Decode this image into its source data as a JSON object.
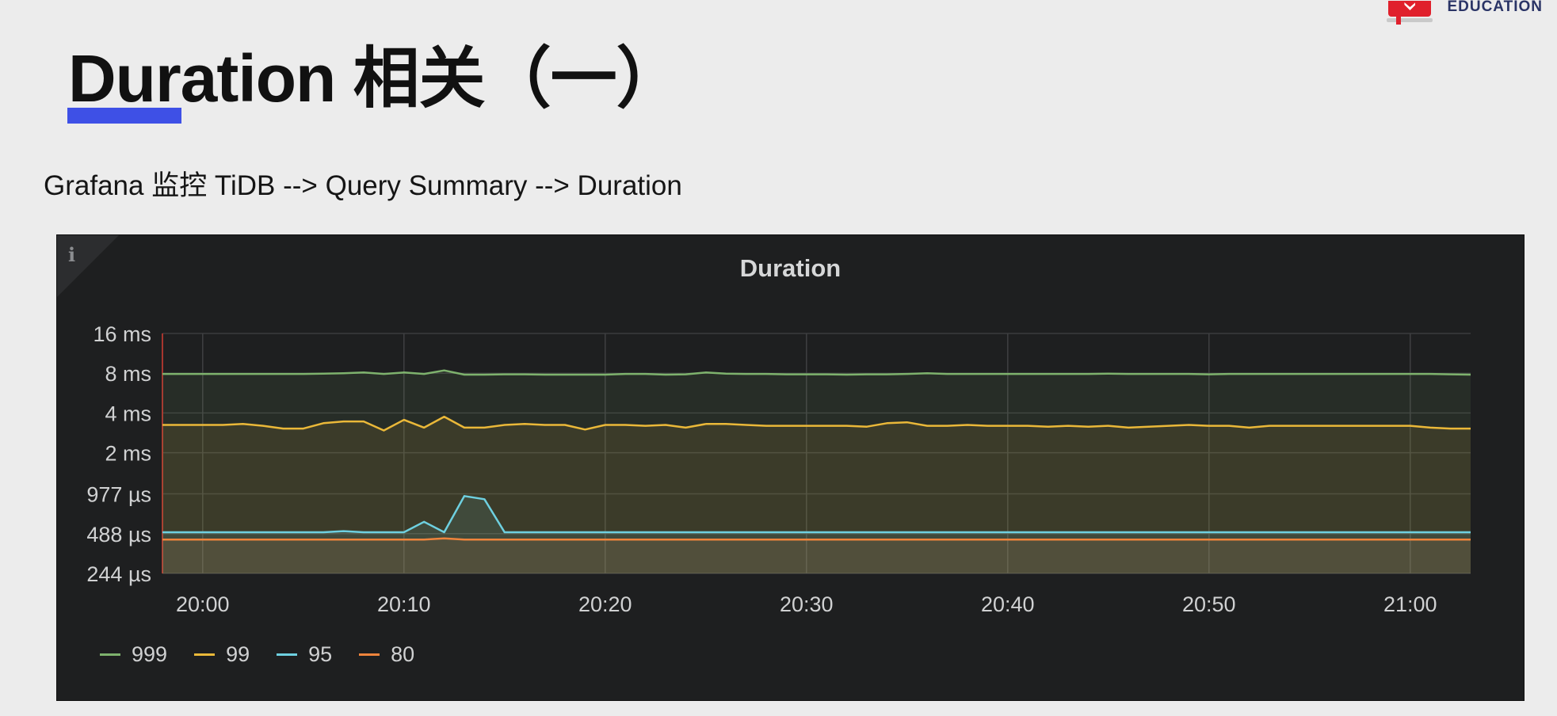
{
  "brand": {
    "logo_text": "EDUCATION"
  },
  "slide": {
    "title": "Duration 相关（一）",
    "subtitle": "Grafana 监控 TiDB --> Query Summary --> Duration"
  },
  "panel": {
    "info_icon": "info-icon",
    "info_glyph": "i"
  },
  "colors": {
    "accent_bar": "#3e50e6",
    "panel_bg": "#1e1f20"
  },
  "chart_data": {
    "type": "line",
    "title": "Duration",
    "y_scale": "log2",
    "ylim_ms": [
      0.244,
      16
    ],
    "y_ticks": [
      {
        "value_ms": 16,
        "label": "16 ms"
      },
      {
        "value_ms": 8,
        "label": "8 ms"
      },
      {
        "value_ms": 4,
        "label": "4 ms"
      },
      {
        "value_ms": 2,
        "label": "2 ms"
      },
      {
        "value_ms": 0.977,
        "label": "977 µs"
      },
      {
        "value_ms": 0.488,
        "label": "488 µs"
      },
      {
        "value_ms": 0.244,
        "label": "244 µs"
      }
    ],
    "x_ticks": [
      "20:00",
      "20:10",
      "20:20",
      "20:30",
      "20:40",
      "20:50",
      "21:00"
    ],
    "xlim": [
      "19:58",
      "21:03"
    ],
    "grid": true,
    "legend_position": "bottom-left",
    "x": [
      "19:58",
      "19:59",
      "20:00",
      "20:01",
      "20:02",
      "20:03",
      "20:04",
      "20:05",
      "20:06",
      "20:07",
      "20:08",
      "20:09",
      "20:10",
      "20:11",
      "20:12",
      "20:13",
      "20:14",
      "20:15",
      "20:16",
      "20:17",
      "20:18",
      "20:19",
      "20:20",
      "20:21",
      "20:22",
      "20:23",
      "20:24",
      "20:25",
      "20:26",
      "20:27",
      "20:28",
      "20:29",
      "20:30",
      "20:31",
      "20:32",
      "20:33",
      "20:34",
      "20:35",
      "20:36",
      "20:37",
      "20:38",
      "20:39",
      "20:40",
      "20:41",
      "20:42",
      "20:43",
      "20:44",
      "20:45",
      "20:46",
      "20:47",
      "20:48",
      "20:49",
      "20:50",
      "20:51",
      "20:52",
      "20:53",
      "20:54",
      "20:55",
      "20:56",
      "20:57",
      "20:58",
      "20:59",
      "21:00",
      "21:01",
      "21:02",
      "21:03"
    ],
    "series": [
      {
        "name": "999",
        "color": "#7eb26d",
        "fill": "#7eb26d",
        "values": [
          7.9,
          7.9,
          7.9,
          7.9,
          7.9,
          7.9,
          7.9,
          7.9,
          7.95,
          8.0,
          8.1,
          7.9,
          8.1,
          7.9,
          8.4,
          7.8,
          7.8,
          7.85,
          7.85,
          7.8,
          7.8,
          7.8,
          7.8,
          7.9,
          7.9,
          7.8,
          7.85,
          8.1,
          7.95,
          7.9,
          7.9,
          7.85,
          7.85,
          7.85,
          7.8,
          7.85,
          7.85,
          7.9,
          8.0,
          7.9,
          7.9,
          7.9,
          7.9,
          7.9,
          7.9,
          7.9,
          7.9,
          7.95,
          7.9,
          7.9,
          7.9,
          7.9,
          7.85,
          7.9,
          7.9,
          7.9,
          7.9,
          7.9,
          7.9,
          7.9,
          7.9,
          7.9,
          7.9,
          7.9,
          7.85,
          7.8
        ]
      },
      {
        "name": "99",
        "color": "#eab839",
        "fill": "#eab839",
        "values": [
          3.25,
          3.25,
          3.25,
          3.25,
          3.3,
          3.2,
          3.05,
          3.05,
          3.35,
          3.45,
          3.45,
          2.95,
          3.55,
          3.1,
          3.75,
          3.1,
          3.1,
          3.25,
          3.3,
          3.25,
          3.25,
          3.0,
          3.25,
          3.25,
          3.2,
          3.25,
          3.1,
          3.3,
          3.3,
          3.25,
          3.2,
          3.2,
          3.2,
          3.2,
          3.2,
          3.15,
          3.35,
          3.4,
          3.2,
          3.2,
          3.25,
          3.2,
          3.2,
          3.2,
          3.15,
          3.2,
          3.15,
          3.2,
          3.1,
          3.15,
          3.2,
          3.25,
          3.2,
          3.2,
          3.1,
          3.2,
          3.2,
          3.2,
          3.2,
          3.2,
          3.2,
          3.2,
          3.2,
          3.1,
          3.05,
          3.05
        ]
      },
      {
        "name": "95",
        "color": "#6ed0e0",
        "fill": "#6ed0e0",
        "values": [
          0.5,
          0.5,
          0.5,
          0.5,
          0.5,
          0.5,
          0.5,
          0.5,
          0.5,
          0.51,
          0.5,
          0.5,
          0.5,
          0.6,
          0.5,
          0.94,
          0.89,
          0.5,
          0.5,
          0.5,
          0.5,
          0.5,
          0.5,
          0.5,
          0.5,
          0.5,
          0.5,
          0.5,
          0.5,
          0.5,
          0.5,
          0.5,
          0.5,
          0.5,
          0.5,
          0.5,
          0.5,
          0.5,
          0.5,
          0.5,
          0.5,
          0.5,
          0.5,
          0.5,
          0.5,
          0.5,
          0.5,
          0.5,
          0.5,
          0.5,
          0.5,
          0.5,
          0.5,
          0.5,
          0.5,
          0.5,
          0.5,
          0.5,
          0.5,
          0.5,
          0.5,
          0.5,
          0.5,
          0.5,
          0.5,
          0.5
        ]
      },
      {
        "name": "80",
        "color": "#ef843c",
        "fill": "#ef843c",
        "values": [
          0.44,
          0.44,
          0.44,
          0.44,
          0.44,
          0.44,
          0.44,
          0.44,
          0.44,
          0.44,
          0.44,
          0.44,
          0.44,
          0.44,
          0.45,
          0.44,
          0.44,
          0.44,
          0.44,
          0.44,
          0.44,
          0.44,
          0.44,
          0.44,
          0.44,
          0.44,
          0.44,
          0.44,
          0.44,
          0.44,
          0.44,
          0.44,
          0.44,
          0.44,
          0.44,
          0.44,
          0.44,
          0.44,
          0.44,
          0.44,
          0.44,
          0.44,
          0.44,
          0.44,
          0.44,
          0.44,
          0.44,
          0.44,
          0.44,
          0.44,
          0.44,
          0.44,
          0.44,
          0.44,
          0.44,
          0.44,
          0.44,
          0.44,
          0.44,
          0.44,
          0.44,
          0.44,
          0.44,
          0.44,
          0.44,
          0.44
        ]
      }
    ]
  }
}
